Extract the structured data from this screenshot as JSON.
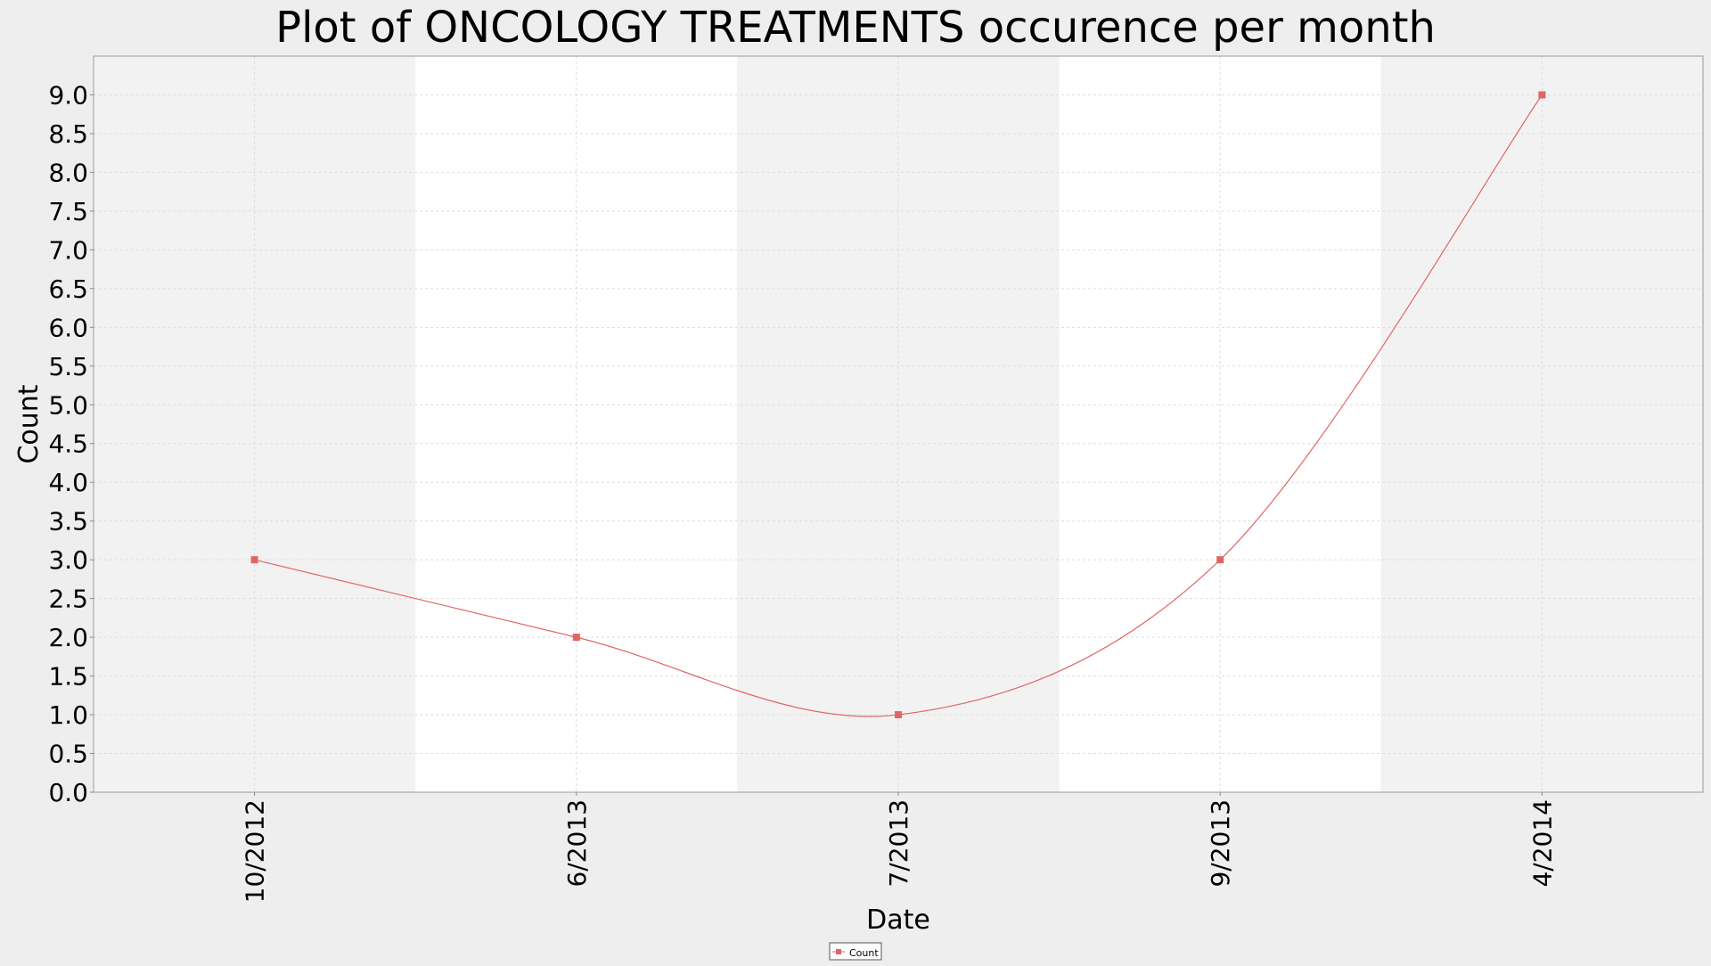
{
  "chart_data": {
    "type": "line",
    "title": "Plot of ONCOLOGY TREATMENTS occurence per month",
    "xlabel": "Date",
    "ylabel": "Count",
    "categories": [
      "10/2012",
      "6/2013",
      "7/2013",
      "9/2013",
      "4/2014"
    ],
    "series": [
      {
        "name": "Count",
        "values": [
          3,
          2,
          1,
          3,
          9
        ],
        "color": "#e06666"
      }
    ],
    "yticks": [
      "0.0",
      "0.5",
      "1.0",
      "1.5",
      "2.0",
      "2.5",
      "3.0",
      "3.5",
      "4.0",
      "4.5",
      "5.0",
      "5.5",
      "6.0",
      "6.5",
      "7.0",
      "7.5",
      "8.0",
      "8.5",
      "9.0"
    ],
    "ylim": [
      0,
      9.5
    ],
    "grid": true,
    "legend_position": "bottom-center",
    "alternating_category_bands": true,
    "line_style": "smooth"
  }
}
